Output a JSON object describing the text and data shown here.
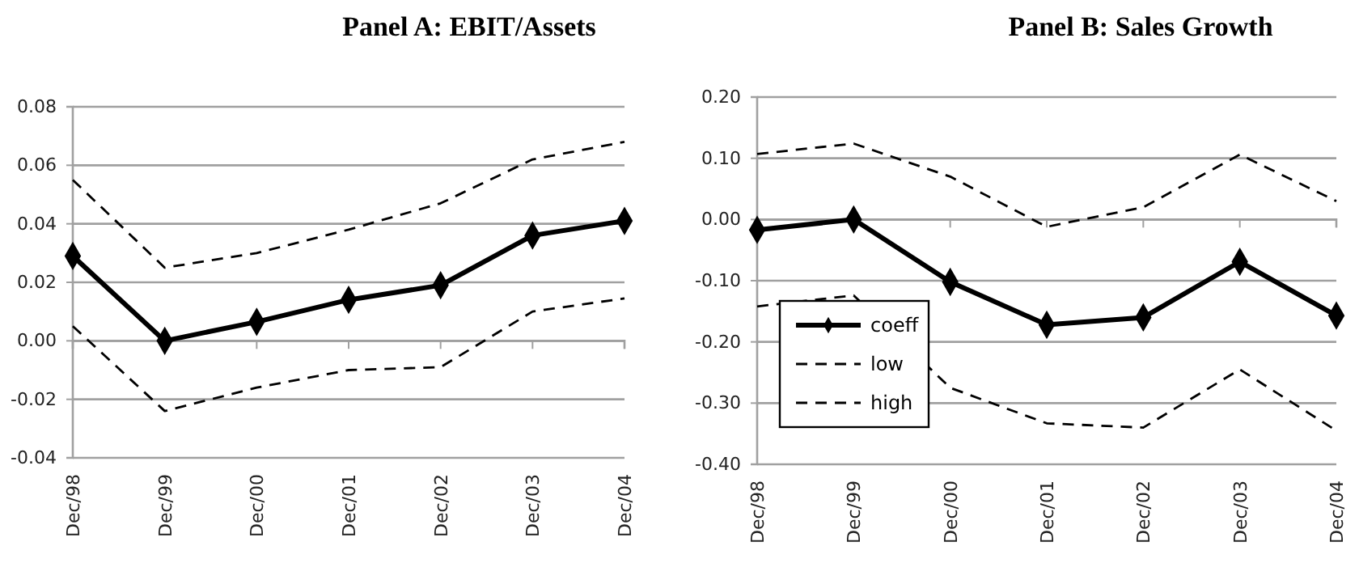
{
  "chart_data": [
    {
      "type": "line",
      "title": "Panel A:    EBIT/Assets",
      "categories": [
        "Dec/98",
        "Dec/99",
        "Dec/00",
        "Dec/01",
        "Dec/02",
        "Dec/03",
        "Dec/04"
      ],
      "ylim": [
        -0.04,
        0.08
      ],
      "yticks": [
        {
          "value": -0.04,
          "label": "-0.04"
        },
        {
          "value": -0.02,
          "label": "-0.02"
        },
        {
          "value": 0,
          "label": "0.00"
        },
        {
          "value": 0.02,
          "label": "0.02"
        },
        {
          "value": 0.04,
          "label": "0.04"
        },
        {
          "value": 0.06,
          "label": "0.06"
        },
        {
          "value": 0.08,
          "label": "0.08"
        }
      ],
      "grid": "y",
      "legend": false,
      "series": [
        {
          "color": "#000000",
          "marker": "diamond",
          "line_style": "solid",
          "values": [
            0.029,
            0.0,
            0.0065,
            0.014,
            0.019,
            0.036,
            0.041
          ]
        },
        {
          "color": "#000000",
          "marker": "none",
          "line_style": "dashed",
          "values": [
            0.005,
            -0.024,
            -0.016,
            -0.01,
            -0.009,
            0.01,
            0.0145
          ]
        },
        {
          "color": "#000000",
          "marker": "none",
          "line_style": "dashed",
          "values": [
            0.055,
            0.025,
            0.03,
            0.038,
            0.047,
            0.062,
            0.068
          ]
        }
      ]
    },
    {
      "type": "line",
      "title": "Panel B:    Sales Growth",
      "categories": [
        "Dec/98",
        "Dec/99",
        "Dec/00",
        "Dec/01",
        "Dec/02",
        "Dec/03",
        "Dec/04"
      ],
      "ylim": [
        -0.4,
        0.2
      ],
      "yticks": [
        {
          "value": -0.4,
          "label": "-0.40"
        },
        {
          "value": -0.3,
          "label": "-0.30"
        },
        {
          "value": -0.2,
          "label": "-0.20"
        },
        {
          "value": -0.1,
          "label": "-0.10"
        },
        {
          "value": 0,
          "label": "0.00"
        },
        {
          "value": 0.1,
          "label": "0.10"
        },
        {
          "value": 0.2,
          "label": "0.20"
        }
      ],
      "grid": "y",
      "legend": "bottom left",
      "series": [
        {
          "name": "coeff",
          "color": "#000000",
          "marker": "diamond",
          "line_style": "solid",
          "values": [
            -0.017,
            0.0,
            -0.102,
            -0.172,
            -0.16,
            -0.069,
            -0.157
          ]
        },
        {
          "name": "low",
          "color": "#000000",
          "marker": "none",
          "line_style": "dashed",
          "values": [
            -0.142,
            -0.124,
            -0.275,
            -0.333,
            -0.34,
            -0.245,
            -0.345
          ]
        },
        {
          "name": "high",
          "color": "#000000",
          "marker": "none",
          "line_style": "dashed",
          "values": [
            0.107,
            0.124,
            0.07,
            -0.012,
            0.02,
            0.106,
            0.03
          ]
        }
      ]
    }
  ]
}
